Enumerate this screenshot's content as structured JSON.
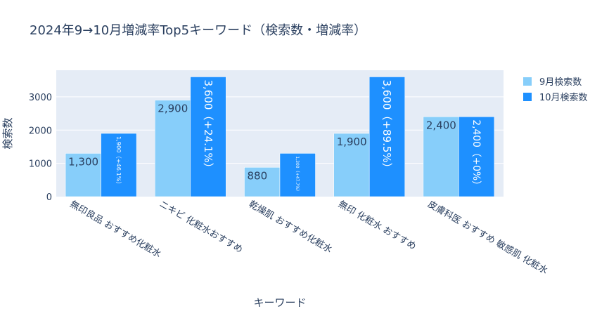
{
  "chart_data": {
    "type": "bar",
    "title": "2024年9→10月増減率Top5キーワード（検索数・増減率）",
    "xlabel": "キーワード",
    "ylabel": "検索数",
    "ylim": [
      0,
      3800
    ],
    "yticks": [
      0,
      1000,
      2000,
      3000
    ],
    "ytick_labels": [
      "0",
      "1000",
      "2000",
      "3000"
    ],
    "grid": true,
    "legend_position": "top-right",
    "categories": [
      "無印良品 おすすめ化粧水",
      "ニキビ 化粧水おすすめ",
      "乾燥肌 おすすめ化粧水",
      "無印 化粧水 おすすめ",
      "皮膚科医 おすすめ 敏感肌 化粧水"
    ],
    "series": [
      {
        "name": "9月検索数",
        "color": "#87cefa",
        "values": [
          1300,
          2900,
          880,
          1900,
          2400
        ],
        "labels": [
          "1,300",
          "2,900",
          "880",
          "1,900",
          "2,400"
        ]
      },
      {
        "name": "10月検索数",
        "color": "#1e90ff",
        "values": [
          1900,
          3600,
          1300,
          3600,
          2400
        ],
        "labels": [
          "1,900（+46.1%）",
          "3,600（+24.1%）",
          "1,300（+47.7%）",
          "3,600（+89.5%）",
          "2,400（+0%）"
        ]
      }
    ]
  }
}
